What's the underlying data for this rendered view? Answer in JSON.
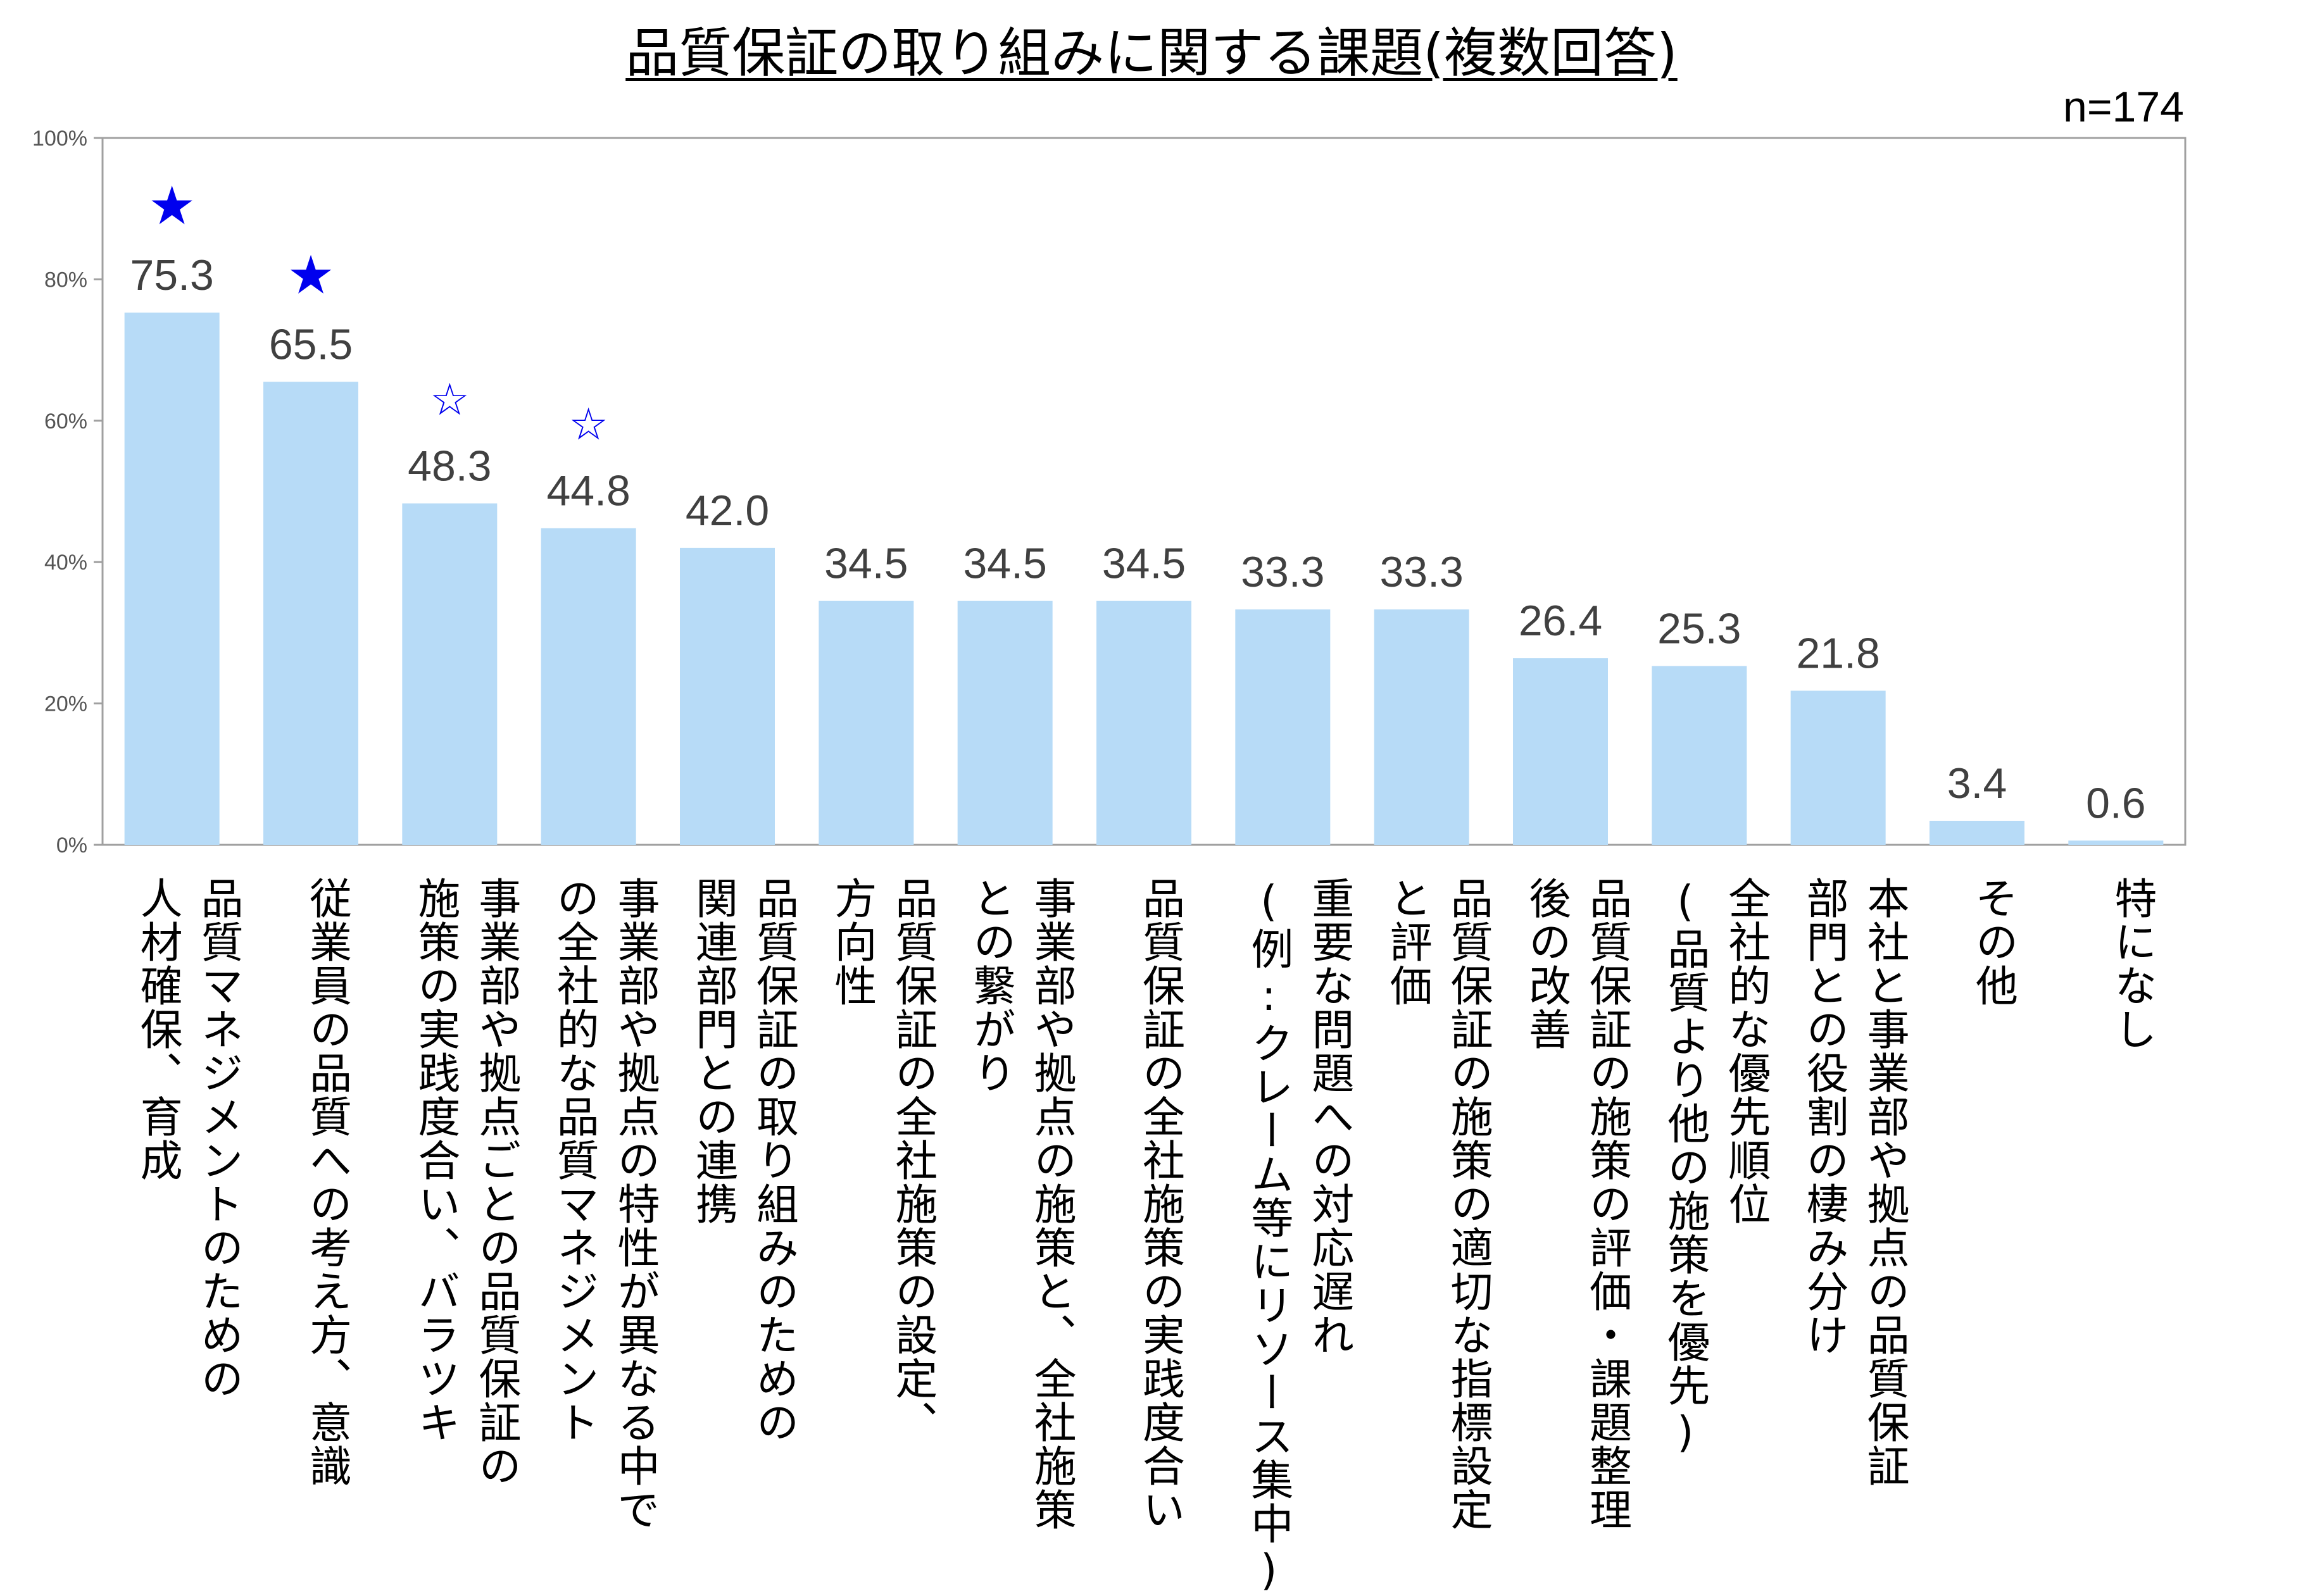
{
  "chart_data": {
    "type": "bar",
    "title": "品質保証の取り組みに関する課題(複数回答)",
    "note": "n=174",
    "ylim": [
      0,
      100
    ],
    "yticks": [
      "0%",
      "20%",
      "40%",
      "60%",
      "80%",
      "100%"
    ],
    "grid": false,
    "categories": [
      "品質マネジメントのための\n人材確保、育成",
      "従業員の品質への考え方、意識",
      "事業部や拠点ごとの品質保証の\n施策の実践度合い、バラツキ",
      "事業部や拠点の特性が異なる中で\nの全社的な品質マネジメント",
      "品質保証の取り組みのための\n関連部門との連携",
      "品質保証の全社施策の設定、\n方向性",
      "事業部や拠点の施策と、全社施策\nとの繋がり",
      "品質保証の全社施策の実践度合い",
      "重要な問題への対応遅れ\n(例:クレーム等にリソース集中)",
      "品質保証の施策の適切な指標設定\nと評価",
      "品質保証の施策の評価・課題整理\n後の改善",
      "全社的な優先順位\n(品質より他の施策を優先)",
      "本社と事業部や拠点の品質保証\n部門との役割の棲み分け",
      "その他",
      "特になし"
    ],
    "values": [
      75.3,
      65.5,
      48.3,
      44.8,
      42.0,
      34.5,
      34.5,
      34.5,
      33.3,
      33.3,
      26.4,
      25.3,
      21.8,
      3.4,
      0.6
    ],
    "value_labels": [
      "75.3",
      "65.5",
      "48.3",
      "44.8",
      "42.0",
      "34.5",
      "34.5",
      "34.5",
      "33.3",
      "33.3",
      "26.4",
      "25.3",
      "21.8",
      "3.4",
      "0.6"
    ],
    "markers": [
      "★",
      "★",
      "☆",
      "☆",
      "",
      "",
      "",
      "",
      "",
      "",
      "",
      "",
      "",
      "",
      ""
    ],
    "colors": {
      "bar": "#b7dbf7",
      "marker": "#0000ee",
      "axis": "#a0a0a0",
      "label": "#404040"
    }
  }
}
